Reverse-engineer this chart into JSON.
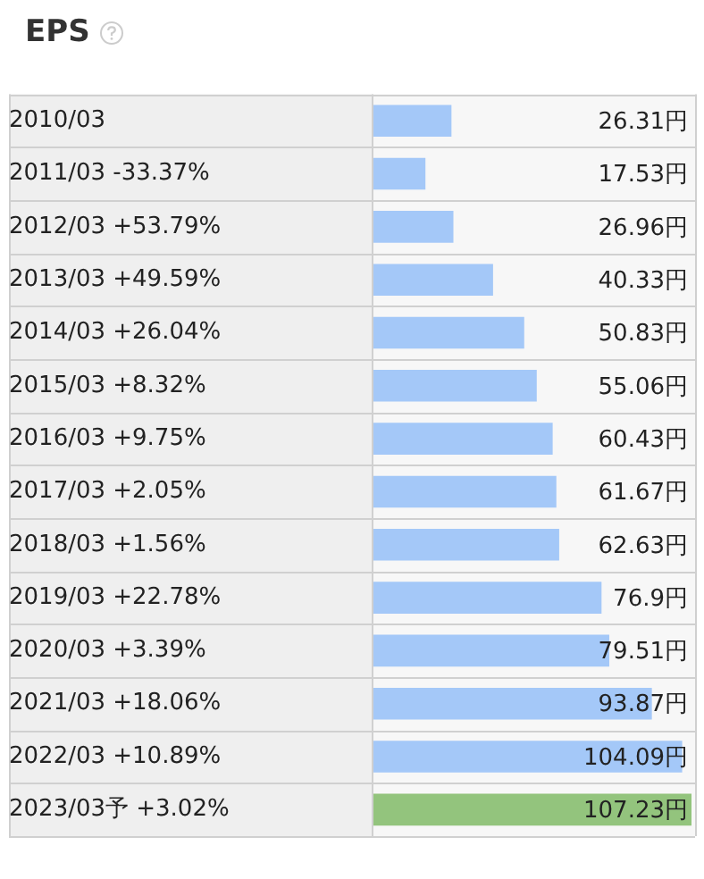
{
  "chart_data": {
    "type": "bar",
    "orientation": "horizontal",
    "title": "EPS",
    "categories": [
      "2010/03",
      "2011/03 -33.37%",
      "2012/03 +53.79%",
      "2013/03 +49.59%",
      "2014/03 +26.04%",
      "2015/03 +8.32%",
      "2016/03 +9.75%",
      "2017/03 +2.05%",
      "2018/03 +1.56%",
      "2019/03 +22.78%",
      "2020/03 +3.39%",
      "2021/03 +18.06%",
      "2022/03 +10.89%",
      "2023/03予 +3.02%"
    ],
    "values": [
      26.31,
      17.53,
      26.96,
      40.33,
      50.83,
      55.06,
      60.43,
      61.67,
      62.63,
      76.9,
      79.51,
      93.87,
      104.09,
      107.23
    ],
    "colors": [
      "#a4c8f8",
      "#a4c8f8",
      "#a4c8f8",
      "#a4c8f8",
      "#a4c8f8",
      "#a4c8f8",
      "#a4c8f8",
      "#a4c8f8",
      "#a4c8f8",
      "#a4c8f8",
      "#a4c8f8",
      "#a4c8f8",
      "#a4c8f8",
      "#93c47d"
    ],
    "value_labels": [
      "26.31円",
      "17.53円",
      "26.96円",
      "40.33円",
      "50.83円",
      "55.06円",
      "60.43円",
      "61.67円",
      "62.63円",
      "76.9円",
      "79.51円",
      "93.87円",
      "104.09円",
      "107.23円"
    ],
    "tick_labels": "y",
    "grid": true,
    "legend": false
  }
}
